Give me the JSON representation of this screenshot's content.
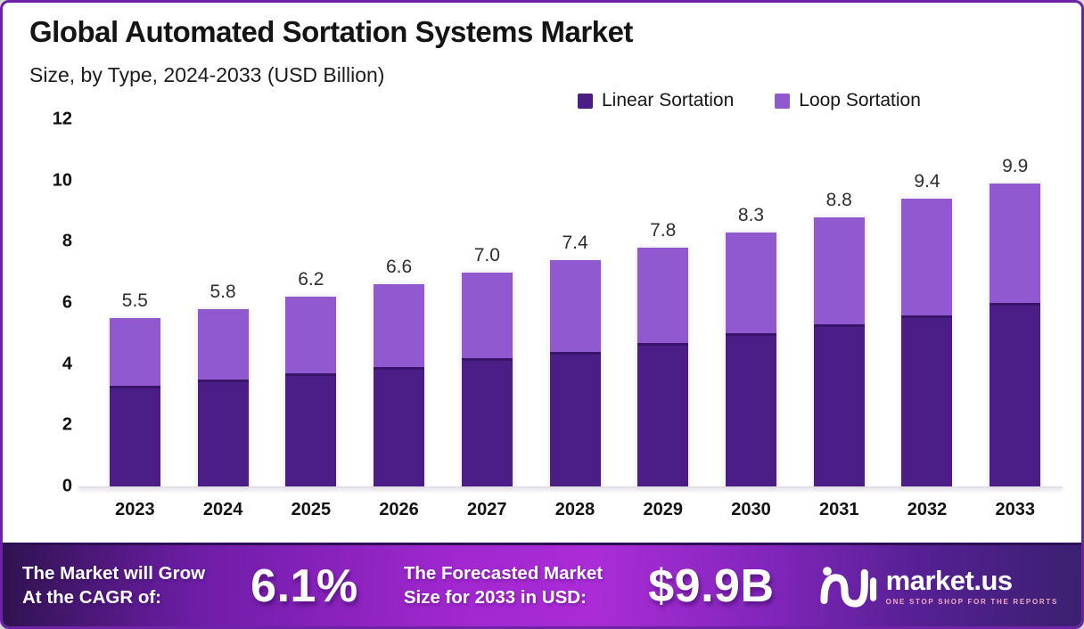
{
  "header": {
    "title": "Global Automated Sortation Systems Market",
    "subtitle": "Size, by Type, 2024-2033 (USD Billion)"
  },
  "chart_data": {
    "type": "bar",
    "stacked": true,
    "title": "Global Automated Sortation Systems Market",
    "subtitle": "Size, by Type, 2024-2033 (USD Billion)",
    "categories": [
      "2023",
      "2024",
      "2025",
      "2026",
      "2027",
      "2028",
      "2029",
      "2030",
      "2031",
      "2032",
      "2033"
    ],
    "series": [
      {
        "name": "Linear Sortation",
        "color": "#4b1e87",
        "values": [
          3.3,
          3.5,
          3.7,
          3.9,
          4.2,
          4.4,
          4.7,
          5.0,
          5.3,
          5.6,
          6.0
        ]
      },
      {
        "name": "Loop Sortation",
        "color": "#9159d0",
        "values": [
          2.2,
          2.3,
          2.5,
          2.7,
          2.8,
          3.0,
          3.1,
          3.3,
          3.5,
          3.8,
          3.9
        ]
      }
    ],
    "totals": [
      "5.5",
      "5.8",
      "6.2",
      "6.6",
      "7.0",
      "7.4",
      "7.8",
      "8.3",
      "8.8",
      "9.4",
      "9.9"
    ],
    "ylim": [
      0,
      12
    ],
    "yticks": [
      "0",
      "2",
      "4",
      "6",
      "8",
      "10",
      "12"
    ],
    "grid": false,
    "legend_position": "top-right"
  },
  "footer": {
    "cagr_line1": "The Market will Grow",
    "cagr_line2": "At the CAGR of:",
    "cagr_value": "6.1%",
    "forecast_line1": "The Forecasted Market",
    "forecast_line2": "Size for 2033 in USD:",
    "forecast_value": "$9.9B",
    "brand": {
      "name": "market.us",
      "tagline": "ONE STOP SHOP FOR THE REPORTS"
    }
  },
  "colors": {
    "frame_border": "#6e22a8",
    "linear_bar": "#4b1e87",
    "loop_bar": "#9159d0",
    "footer_gradient_left": "#2f1350",
    "footer_gradient_center": "#aa2cd6",
    "footer_gradient_right": "#3a2070",
    "tagline_pink": "#f0a9c4"
  }
}
